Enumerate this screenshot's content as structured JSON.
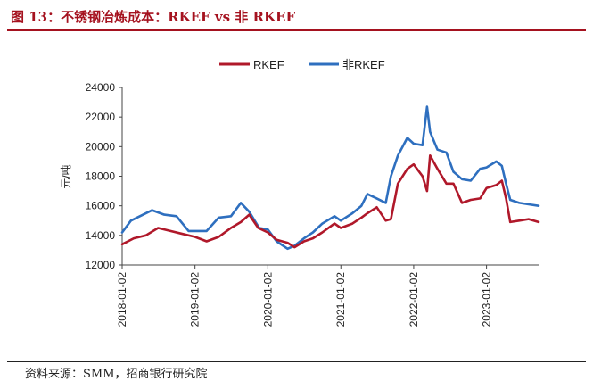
{
  "header": {
    "title": "图 13：不锈钢冶炼成本：RKEF vs 非 RKEF"
  },
  "footer": {
    "source": "资料来源：SMM，招商银行研究院"
  },
  "colors": {
    "accent": "#a5121f",
    "rkef": "#b0182a",
    "non_rkef": "#2e6fbf"
  },
  "chart_data": {
    "type": "line",
    "title": "",
    "xlabel": "",
    "ylabel": "元/吨",
    "ylim": [
      12000,
      24000
    ],
    "yticks": [
      12000,
      14000,
      16000,
      18000,
      20000,
      22000,
      24000
    ],
    "xlim": [
      "2018-01-02",
      "2023-09-20"
    ],
    "xticks": [
      "2018-01-02",
      "2019-01-02",
      "2020-01-02",
      "2021-01-02",
      "2022-01-02",
      "2023-01-02"
    ],
    "grid": false,
    "legend": "top-center",
    "series": [
      {
        "name": "RKEF",
        "color": "#b0182a",
        "x": [
          "2018-01-02",
          "2018-03-01",
          "2018-05-01",
          "2018-07-01",
          "2018-09-01",
          "2018-11-01",
          "2019-01-02",
          "2019-03-01",
          "2019-05-01",
          "2019-07-01",
          "2019-08-20",
          "2019-10-01",
          "2019-11-15",
          "2020-01-02",
          "2020-02-15",
          "2020-04-10",
          "2020-05-15",
          "2020-07-01",
          "2020-08-15",
          "2020-10-01",
          "2020-12-01",
          "2021-01-02",
          "2021-03-01",
          "2021-04-15",
          "2021-05-15",
          "2021-07-01",
          "2021-08-15",
          "2021-09-10",
          "2021-10-15",
          "2021-12-01",
          "2022-01-02",
          "2022-02-15",
          "2022-03-10",
          "2022-03-25",
          "2022-05-01",
          "2022-06-15",
          "2022-07-20",
          "2022-09-01",
          "2022-10-15",
          "2022-12-01",
          "2023-01-02",
          "2023-02-20",
          "2023-03-20",
          "2023-04-10",
          "2023-05-01",
          "2023-06-15",
          "2023-08-01",
          "2023-09-20"
        ],
        "values": [
          13400,
          13800,
          14000,
          14500,
          14300,
          14100,
          13900,
          13600,
          13900,
          14500,
          14900,
          15400,
          14500,
          14200,
          13700,
          13500,
          13200,
          13600,
          13800,
          14200,
          14800,
          14500,
          14800,
          15200,
          15500,
          15900,
          15000,
          15100,
          17500,
          18500,
          18800,
          18000,
          17000,
          19400,
          18500,
          17500,
          17500,
          16200,
          16400,
          16500,
          17200,
          17400,
          17700,
          16500,
          14900,
          15000,
          15100,
          14900
        ]
      },
      {
        "name": "非RKEF",
        "color": "#2e6fbf",
        "x": [
          "2018-01-02",
          "2018-02-15",
          "2018-04-01",
          "2018-06-01",
          "2018-08-01",
          "2018-10-01",
          "2018-12-01",
          "2019-01-02",
          "2019-03-01",
          "2019-05-01",
          "2019-07-01",
          "2019-08-20",
          "2019-10-01",
          "2019-11-20",
          "2020-01-02",
          "2020-02-15",
          "2020-04-10",
          "2020-05-15",
          "2020-07-01",
          "2020-08-15",
          "2020-10-01",
          "2020-12-01",
          "2021-01-02",
          "2021-03-01",
          "2021-04-15",
          "2021-05-15",
          "2021-07-01",
          "2021-08-15",
          "2021-09-10",
          "2021-10-15",
          "2021-12-01",
          "2022-01-02",
          "2022-02-15",
          "2022-03-10",
          "2022-03-25",
          "2022-05-01",
          "2022-06-15",
          "2022-07-20",
          "2022-09-01",
          "2022-10-15",
          "2022-12-01",
          "2023-01-02",
          "2023-02-20",
          "2023-03-20",
          "2023-04-10",
          "2023-05-01",
          "2023-06-15",
          "2023-08-01",
          "2023-09-20"
        ],
        "values": [
          14200,
          15000,
          15300,
          15700,
          15400,
          15300,
          14300,
          14300,
          14300,
          15200,
          15300,
          16200,
          15600,
          14500,
          14400,
          13600,
          13100,
          13300,
          13800,
          14200,
          14800,
          15300,
          15000,
          15500,
          16000,
          16800,
          16500,
          16200,
          18000,
          19400,
          20600,
          20200,
          20100,
          22700,
          21000,
          19800,
          19600,
          18300,
          17800,
          17700,
          18500,
          18600,
          19000,
          18700,
          17500,
          16400,
          16200,
          16100,
          16000
        ]
      }
    ]
  }
}
